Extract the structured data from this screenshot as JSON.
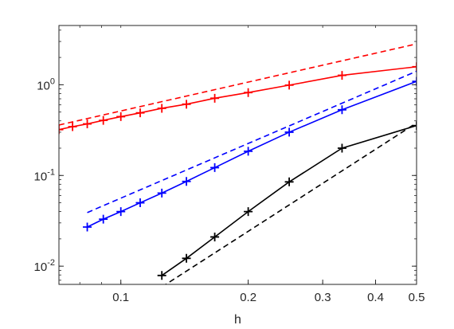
{
  "chart_data": {
    "type": "line",
    "title": "",
    "xlabel": "h",
    "ylabel": "",
    "xscale": "log",
    "yscale": "log",
    "xlim": [
      0.0714,
      0.5
    ],
    "ylim": [
      0.0063,
      4.5
    ],
    "grid": false,
    "legend": "none",
    "x_ticks": [
      {
        "value": 0.1,
        "label": "0.1"
      },
      {
        "value": 0.2,
        "label": "0.2"
      },
      {
        "value": 0.3,
        "label": "0.3"
      },
      {
        "value": 0.4,
        "label": "0.4"
      },
      {
        "value": 0.5,
        "label": "0.5"
      }
    ],
    "y_ticks": [
      {
        "value": 0.01,
        "base": "10",
        "exp": "-2"
      },
      {
        "value": 0.1,
        "base": "10",
        "exp": "-1"
      },
      {
        "value": 1,
        "base": "10",
        "exp": "0"
      }
    ],
    "series": [
      {
        "color": "#ff0000",
        "style": "solid",
        "marker": "+",
        "x": [
          0.5,
          0.3333,
          0.25,
          0.2,
          0.1667,
          0.1429,
          0.125,
          0.1111,
          0.1,
          0.0909,
          0.0833,
          0.0769,
          0.0714
        ],
        "y": [
          1.58,
          1.27,
          0.99,
          0.82,
          0.71,
          0.61,
          0.55,
          0.49,
          0.445,
          0.405,
          0.37,
          0.345,
          0.32
        ]
      },
      {
        "color": "#ff0000",
        "style": "dashed",
        "marker": "none",
        "x": [
          0.0714,
          0.5
        ],
        "y": [
          0.36,
          2.82
        ]
      },
      {
        "color": "#0000ff",
        "style": "solid",
        "marker": "+",
        "x": [
          0.5,
          0.3333,
          0.25,
          0.2,
          0.1667,
          0.1429,
          0.125,
          0.1111,
          0.1,
          0.0909,
          0.0833
        ],
        "y": [
          1.09,
          0.53,
          0.3,
          0.185,
          0.122,
          0.086,
          0.064,
          0.05,
          0.04,
          0.033,
          0.027
        ]
      },
      {
        "color": "#0000ff",
        "style": "dashed",
        "marker": "none",
        "x": [
          0.0833,
          0.5
        ],
        "y": [
          0.039,
          1.41
        ]
      },
      {
        "color": "#000000",
        "style": "solid",
        "marker": "+",
        "x": [
          0.5,
          0.3333,
          0.25,
          0.2,
          0.1667,
          0.1429,
          0.125
        ],
        "y": [
          0.355,
          0.2,
          0.085,
          0.04,
          0.021,
          0.0122,
          0.0079
        ]
      },
      {
        "color": "#000000",
        "style": "dashed",
        "marker": "none",
        "x": [
          0.125,
          0.5
        ],
        "y": [
          0.0059,
          0.38
        ]
      }
    ]
  }
}
